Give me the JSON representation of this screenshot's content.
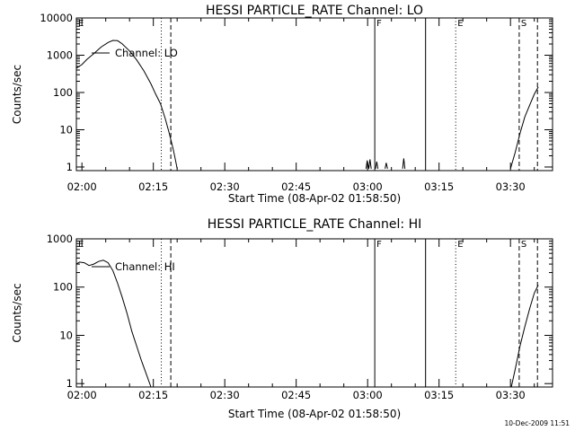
{
  "footer": {
    "timestamp": "10-Dec-2009 11:51"
  },
  "chart_data": [
    {
      "type": "line",
      "title": "HESSI PARTICLE_RATE Channel: LO",
      "xlabel": "Start Time (08-Apr-02 01:58:50)",
      "ylabel": "Counts/sec",
      "yscale": "log",
      "xlim": [
        "01:58:50",
        "03:38:50"
      ],
      "ylim": [
        0.8,
        10000
      ],
      "xticks": [
        "02:00",
        "02:15",
        "02:30",
        "02:45",
        "03:00",
        "03:15",
        "03:30"
      ],
      "yticks": [
        "1",
        "10",
        "100",
        "1000",
        "10000"
      ],
      "legend": {
        "label": "Channel: LO",
        "position": "top-left"
      },
      "series": [
        {
          "name": "Channel: LO",
          "segments": [
            [
              [
                "01:58:50",
                450
              ],
              [
                "02:00:00",
                560
              ],
              [
                "02:01:00",
                760
              ],
              [
                "02:02:30",
                1100
              ],
              [
                "02:04:00",
                1650
              ],
              [
                "02:05:30",
                2200
              ],
              [
                "02:06:30",
                2500
              ],
              [
                "02:07:30",
                2450
              ],
              [
                "02:08:30",
                2000
              ],
              [
                "02:10:00",
                1300
              ],
              [
                "02:11:30",
                750
              ],
              [
                "02:13:00",
                380
              ],
              [
                "02:14:30",
                170
              ],
              [
                "02:15:30",
                90
              ],
              [
                "02:16:30",
                50
              ],
              [
                "02:17:30",
                20
              ],
              [
                "02:18:20",
                8
              ],
              [
                "02:19:10",
                3
              ],
              [
                "02:19:40",
                1.5
              ],
              [
                "02:20:00",
                0.9
              ]
            ],
            [
              [
                "02:59:40",
                0.9
              ],
              [
                "02:59:55",
                1.5
              ],
              [
                "03:00:15",
                0.9
              ],
              [
                "03:00:30",
                1.6
              ],
              [
                "03:00:45",
                0.9
              ]
            ],
            [
              [
                "03:01:40",
                0.9
              ],
              [
                "03:01:55",
                1.4
              ],
              [
                "03:02:10",
                0.9
              ]
            ],
            [
              [
                "03:03:40",
                0.9
              ],
              [
                "03:03:55",
                1.3
              ],
              [
                "03:04:10",
                0.9
              ]
            ],
            [
              [
                "03:07:20",
                0.9
              ],
              [
                "03:07:35",
                1.7
              ],
              [
                "03:07:50",
                0.9
              ]
            ],
            [
              [
                "03:30:00",
                0.9
              ],
              [
                "03:31:00",
                2.5
              ],
              [
                "03:32:00",
                8
              ],
              [
                "03:33:00",
                22
              ],
              [
                "03:34:00",
                45
              ],
              [
                "03:35:00",
                90
              ],
              [
                "03:35:50",
                140
              ]
            ]
          ]
        }
      ],
      "markers": [
        {
          "label": "E",
          "time": "01:58:50",
          "style": "none"
        },
        {
          "time": "02:16:40",
          "style": "dotted"
        },
        {
          "time": "02:18:40",
          "style": "dashed"
        },
        {
          "label": "F",
          "time": "03:01:30",
          "style": "solid"
        },
        {
          "time": "03:12:10",
          "style": "solid"
        },
        {
          "label": "E",
          "time": "03:18:30",
          "style": "dotted"
        },
        {
          "label": "S",
          "time": "03:31:50",
          "style": "dashed"
        },
        {
          "time": "03:35:40",
          "style": "dashed"
        }
      ]
    },
    {
      "type": "line",
      "title": "HESSI PARTICLE_RATE Channel: HI",
      "xlabel": "Start Time (08-Apr-02 01:58:50)",
      "ylabel": "Counts/sec",
      "yscale": "log",
      "xlim": [
        "01:58:50",
        "03:38:50"
      ],
      "ylim": [
        0.85,
        1000
      ],
      "xticks": [
        "02:00",
        "02:15",
        "02:30",
        "02:45",
        "03:00",
        "03:15",
        "03:30"
      ],
      "yticks": [
        "1",
        "10",
        "100",
        "1000"
      ],
      "legend": {
        "label": "Channel: HI",
        "position": "top-left"
      },
      "series": [
        {
          "name": "Channel: HI",
          "segments": [
            [
              [
                "01:58:50",
                300
              ],
              [
                "01:59:30",
                330
              ],
              [
                "02:00:30",
                320
              ],
              [
                "02:01:30",
                280
              ],
              [
                "02:02:30",
                300
              ],
              [
                "02:03:30",
                340
              ],
              [
                "02:04:30",
                360
              ],
              [
                "02:05:30",
                320
              ],
              [
                "02:06:30",
                220
              ],
              [
                "02:07:30",
                120
              ],
              [
                "02:08:30",
                60
              ],
              [
                "02:09:30",
                28
              ],
              [
                "02:10:30",
                12
              ],
              [
                "02:11:30",
                6
              ],
              [
                "02:12:30",
                3
              ],
              [
                "02:13:30",
                1.6
              ],
              [
                "02:14:30",
                0.85
              ]
            ],
            [
              [
                "03:30:10",
                0.85
              ],
              [
                "03:31:00",
                2
              ],
              [
                "03:32:00",
                6
              ],
              [
                "03:33:00",
                15
              ],
              [
                "03:34:00",
                35
              ],
              [
                "03:35:00",
                75
              ],
              [
                "03:35:50",
                110
              ]
            ]
          ]
        }
      ],
      "markers": [
        {
          "label": "E",
          "time": "01:58:50",
          "style": "none"
        },
        {
          "time": "02:16:40",
          "style": "dotted"
        },
        {
          "time": "02:18:40",
          "style": "dashed"
        },
        {
          "label": "F",
          "time": "03:01:30",
          "style": "solid"
        },
        {
          "time": "03:12:10",
          "style": "solid"
        },
        {
          "label": "E",
          "time": "03:18:30",
          "style": "dotted"
        },
        {
          "label": "S",
          "time": "03:31:50",
          "style": "dashed"
        },
        {
          "time": "03:35:40",
          "style": "dashed"
        }
      ]
    }
  ]
}
